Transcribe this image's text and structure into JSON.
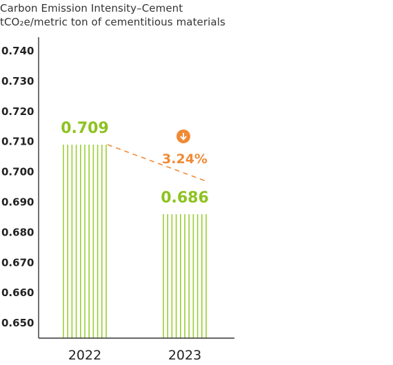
{
  "title": "Carbon Emission Intensity–Cement",
  "unit": "tCO₂e/metric ton of cementitious materials",
  "colors": {
    "bar": "#9ACD32",
    "value_label": "#8DC21F",
    "trend": "#F08A35",
    "axis": "#333333"
  },
  "icons": {
    "change_indicator": "down-arrow-circle-icon"
  },
  "chart_data": {
    "type": "bar",
    "title": "Carbon Emission Intensity–Cement",
    "ylabel": "tCO₂e/metric ton of cementitious materials",
    "xlabel": "",
    "categories": [
      "2022",
      "2023"
    ],
    "values": [
      0.709,
      0.686
    ],
    "value_labels": [
      "0.709",
      "0.686"
    ],
    "ylim": [
      0.645,
      0.745
    ],
    "yticks": [
      0.65,
      0.66,
      0.67,
      0.68,
      0.69,
      0.7,
      0.71,
      0.72,
      0.73,
      0.74
    ],
    "ytick_labels": [
      "0.650",
      "0.660",
      "0.670",
      "0.680",
      "0.690",
      "0.700",
      "0.710",
      "0.720",
      "0.730",
      "0.740"
    ],
    "grid": false,
    "bar_style": "vertical-stripes",
    "change": {
      "label": "3.24%",
      "direction": "down",
      "trend_line": {
        "from": 0.709,
        "to": 0.697
      }
    }
  }
}
